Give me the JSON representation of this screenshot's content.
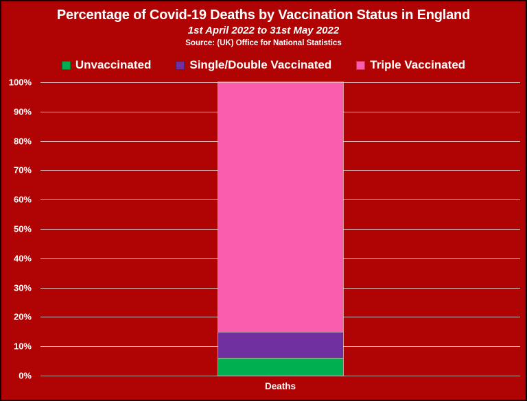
{
  "header": {
    "title": "Percentage of Covid-19 Deaths by Vaccination Status in England",
    "subtitle": "1st April 2022 to 31st May 2022",
    "source": "Source: (UK) Office for National Statistics"
  },
  "colors": {
    "background": "#b00404",
    "frame_border": "#1a0000",
    "text": "#ffffff",
    "gridline": "#dcbcbc",
    "unvaccinated_green": "#00b050",
    "single_double_purple": "#7030a0",
    "triple_pink": "#fb5dad"
  },
  "legend": {
    "items": [
      {
        "label": "Unvaccinated",
        "color": "#00b050"
      },
      {
        "label": "Single/Double Vaccinated",
        "color": "#7030a0"
      },
      {
        "label": "Triple Vaccinated",
        "color": "#fb5dad"
      }
    ]
  },
  "chart_data": {
    "type": "bar",
    "stacked": true,
    "title": "Percentage of Covid-19 Deaths by Vaccination Status in England",
    "subtitle": "1st April 2022 to 31st May 2022",
    "source": "Source: (UK) Office for National Statistics",
    "categories": [
      "Deaths"
    ],
    "series": [
      {
        "name": "Unvaccinated",
        "key": "unvaccinated",
        "color": "#00b050",
        "values": [
          6
        ]
      },
      {
        "name": "Single/Double Vaccinated",
        "key": "single-double-vaccinated",
        "color": "#7030a0",
        "values": [
          9
        ]
      },
      {
        "name": "Triple Vaccinated",
        "key": "triple-vaccinated",
        "color": "#fb5dad",
        "values": [
          85
        ]
      }
    ],
    "xlabel": "Deaths",
    "ylabel": "",
    "ylim": [
      0,
      100
    ],
    "ytick_step": 10,
    "ytick_suffix": "%",
    "grid": true,
    "legend_position": "top"
  }
}
